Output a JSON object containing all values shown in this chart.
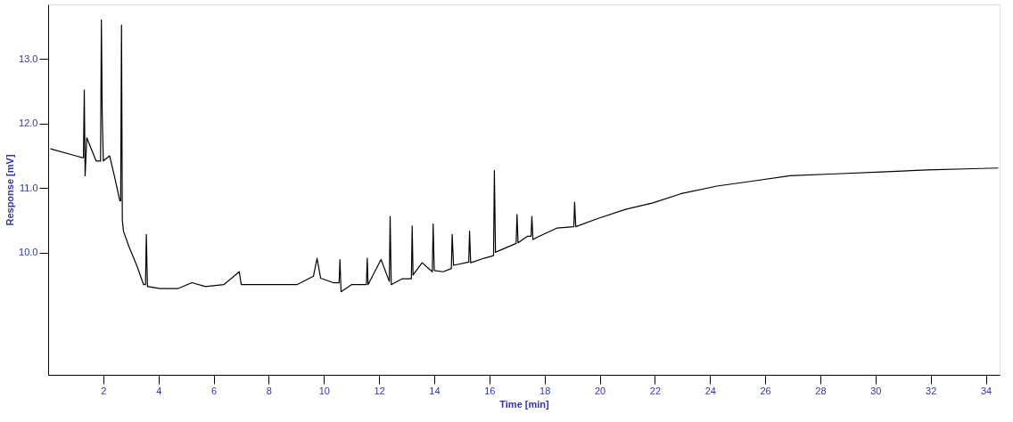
{
  "chart_data": {
    "type": "line",
    "xlabel": "Time [min]",
    "ylabel": "Response [mV]",
    "xlim": [
      0,
      34.5
    ],
    "ylim": [
      8.1,
      13.85
    ],
    "xticks": [
      2,
      4,
      6,
      8,
      10,
      12,
      14,
      16,
      18,
      20,
      22,
      24,
      26,
      28,
      30,
      32,
      34
    ],
    "yticks": [
      {
        "value": 10,
        "label": "10.0"
      },
      {
        "value": 11,
        "label": "11.0"
      },
      {
        "value": 12,
        "label": "12.0"
      },
      {
        "value": 13,
        "label": "13.0"
      }
    ],
    "grid": false,
    "marker": "none",
    "line_style": "solid",
    "x": [
      0.08,
      1.0,
      1.24,
      1.28,
      1.31,
      1.34,
      1.4,
      1.74,
      1.9,
      1.93,
      1.96,
      2.0,
      2.23,
      2.4,
      2.6,
      2.63,
      2.66,
      2.69,
      2.73,
      2.93,
      3.23,
      3.46,
      3.53,
      3.56,
      3.6,
      3.62,
      4.05,
      4.72,
      5.21,
      5.71,
      6.37,
      6.93,
      7.0,
      8.03,
      9.02,
      9.62,
      9.75,
      9.88,
      10.34,
      10.55,
      10.58,
      10.62,
      11.0,
      11.54,
      11.57,
      11.6,
      12.07,
      12.37,
      12.4,
      12.44,
      12.83,
      13.17,
      13.2,
      13.23,
      13.56,
      13.93,
      13.96,
      14.0,
      14.32,
      14.62,
      14.65,
      14.7,
      15.25,
      15.28,
      15.32,
      15.81,
      16.15,
      16.18,
      16.22,
      16.31,
      16.97,
      17.0,
      17.04,
      17.37,
      17.51,
      17.54,
      17.58,
      17.8,
      18.46,
      19.06,
      19.09,
      19.13,
      19.95,
      20.94,
      21.93,
      22.93,
      24.25,
      25.58,
      26.9,
      28.56,
      30.21,
      31.87,
      33.52,
      34.45
    ],
    "values": [
      11.61,
      11.5,
      11.47,
      11.47,
      12.52,
      11.19,
      11.78,
      11.42,
      11.42,
      13.61,
      12.16,
      11.42,
      11.5,
      11.19,
      10.8,
      10.8,
      13.53,
      10.5,
      10.33,
      10.09,
      9.78,
      9.5,
      9.5,
      10.28,
      9.47,
      9.47,
      9.44,
      9.44,
      9.53,
      9.47,
      9.5,
      9.7,
      9.5,
      9.5,
      9.5,
      9.63,
      9.91,
      9.6,
      9.53,
      9.53,
      9.89,
      9.39,
      9.5,
      9.5,
      9.91,
      9.5,
      9.89,
      9.55,
      10.56,
      9.5,
      9.59,
      9.59,
      10.41,
      9.65,
      9.84,
      9.7,
      10.44,
      9.72,
      9.7,
      9.75,
      10.28,
      9.8,
      9.85,
      10.33,
      9.84,
      9.91,
      9.95,
      11.27,
      10.0,
      10.02,
      10.14,
      10.59,
      10.15,
      10.25,
      10.25,
      10.56,
      10.2,
      10.25,
      10.38,
      10.4,
      10.78,
      10.4,
      10.53,
      10.67,
      10.77,
      10.91,
      11.03,
      11.11,
      11.19,
      11.22,
      11.25,
      11.28,
      11.3,
      11.31
    ],
    "color": "#000000"
  }
}
